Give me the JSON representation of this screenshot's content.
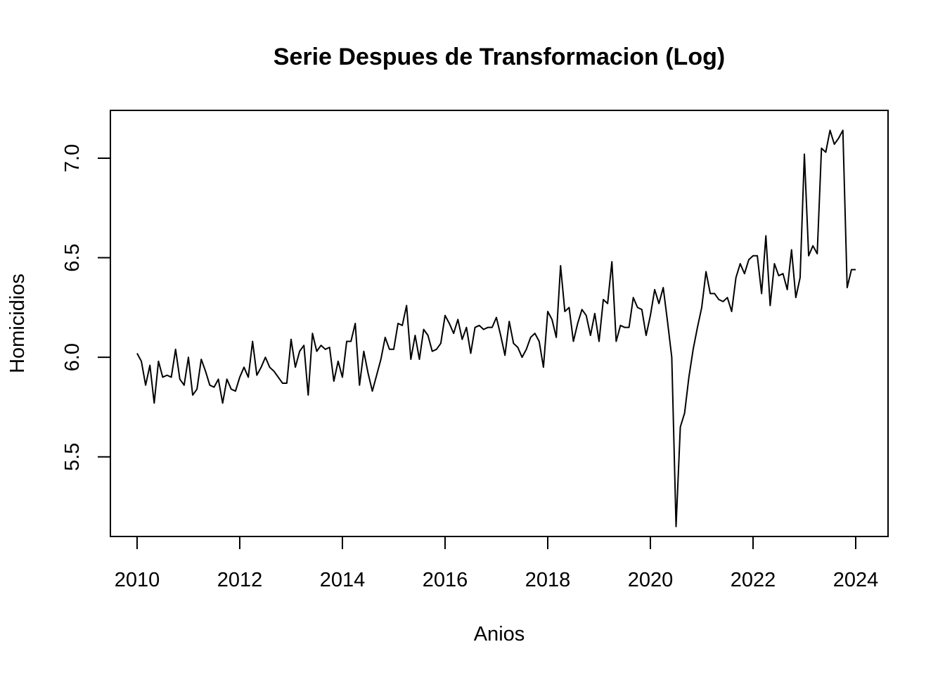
{
  "chart_data": {
    "type": "line",
    "title": "Serie Despues de Transformacion (Log)",
    "xlabel": "Anios",
    "ylabel": "Homicidios",
    "xlim": [
      2009.48,
      2024.63
    ],
    "ylim": [
      5.1,
      7.24
    ],
    "x_ticks": [
      2010,
      2012,
      2014,
      2016,
      2018,
      2020,
      2022,
      2024
    ],
    "x_tick_labels": [
      "2010",
      "2012",
      "2014",
      "2016",
      "2018",
      "2020",
      "2022",
      "2024"
    ],
    "y_ticks": [
      5.5,
      6.0,
      6.5,
      7.0
    ],
    "y_tick_labels": [
      "5.5",
      "6.0",
      "6.5",
      "7.0"
    ],
    "grid": false,
    "frequency": "monthly",
    "series": [
      {
        "x_start": 2010.0,
        "x_step": 0.0833333,
        "values": [
          6.02,
          5.98,
          5.86,
          5.96,
          5.77,
          5.98,
          5.9,
          5.91,
          5.9,
          6.04,
          5.89,
          5.86,
          6.0,
          5.81,
          5.84,
          5.99,
          5.93,
          5.86,
          5.85,
          5.89,
          5.77,
          5.89,
          5.84,
          5.83,
          5.9,
          5.95,
          5.9,
          6.08,
          5.91,
          5.95,
          6.0,
          5.95,
          5.93,
          5.9,
          5.87,
          5.87,
          6.09,
          5.95,
          6.03,
          6.06,
          5.81,
          6.12,
          6.03,
          6.06,
          6.04,
          6.05,
          5.88,
          5.98,
          5.9,
          6.08,
          6.08,
          6.17,
          5.86,
          6.03,
          5.92,
          5.83,
          5.91,
          5.99,
          6.1,
          6.04,
          6.04,
          6.17,
          6.16,
          6.26,
          5.99,
          6.11,
          5.99,
          6.14,
          6.11,
          6.03,
          6.04,
          6.07,
          6.21,
          6.17,
          6.12,
          6.19,
          6.09,
          6.15,
          6.02,
          6.15,
          6.16,
          6.14,
          6.15,
          6.15,
          6.2,
          6.11,
          6.01,
          6.18,
          6.07,
          6.05,
          6.0,
          6.04,
          6.1,
          6.12,
          6.08,
          5.95,
          6.23,
          6.19,
          6.1,
          6.46,
          6.23,
          6.25,
          6.08,
          6.17,
          6.24,
          6.21,
          6.11,
          6.22,
          6.08,
          6.29,
          6.27,
          6.48,
          6.08,
          6.16,
          6.15,
          6.15,
          6.3,
          6.25,
          6.24,
          6.11,
          6.21,
          6.34,
          6.27,
          6.35,
          6.18,
          6.0,
          5.15,
          5.65,
          5.72,
          5.9,
          6.04,
          6.15,
          6.25,
          6.43,
          6.32,
          6.32,
          6.29,
          6.28,
          6.3,
          6.23,
          6.4,
          6.47,
          6.42,
          6.49,
          6.51,
          6.51,
          6.32,
          6.61,
          6.26,
          6.47,
          6.41,
          6.42,
          6.34,
          6.54,
          6.3,
          6.4,
          7.02,
          6.51,
          6.56,
          6.52,
          7.05,
          7.03,
          7.14,
          7.07,
          7.1,
          7.14,
          6.35,
          6.44,
          6.44
        ]
      }
    ]
  }
}
